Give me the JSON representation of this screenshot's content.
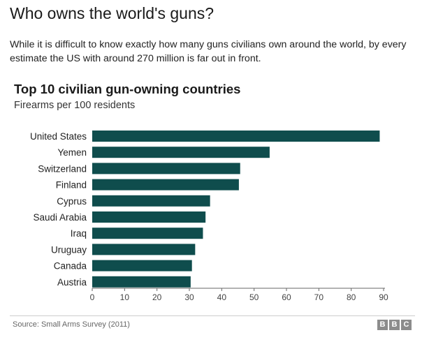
{
  "headline": "Who owns the world's guns?",
  "intro": "While it is difficult to know exactly how many guns civilians own around the world, by every estimate the US with around 270 million is far out in front.",
  "footer": {
    "source": "Source: Small Arms Survey (2011)",
    "logo_letters": [
      "B",
      "B",
      "C"
    ]
  },
  "colors": {
    "bar": "#0f4d4d",
    "axis": "#666666",
    "text": "#222222"
  },
  "chart_data": {
    "type": "bar",
    "orientation": "horizontal",
    "title": "Top 10 civilian gun-owning countries",
    "subtitle": "Firearms per 100 residents",
    "categories": [
      "United States",
      "Yemen",
      "Switzerland",
      "Finland",
      "Cyprus",
      "Saudi Arabia",
      "Iraq",
      "Uruguay",
      "Canada",
      "Austria"
    ],
    "values": [
      88.8,
      54.8,
      45.7,
      45.3,
      36.4,
      35.0,
      34.2,
      31.8,
      30.8,
      30.4
    ],
    "xlim": [
      0,
      90
    ],
    "xticks": [
      "0",
      "10",
      "20",
      "30",
      "40",
      "50",
      "60",
      "70",
      "80",
      "90"
    ],
    "xlabel": "",
    "ylabel": "",
    "grid": false
  }
}
